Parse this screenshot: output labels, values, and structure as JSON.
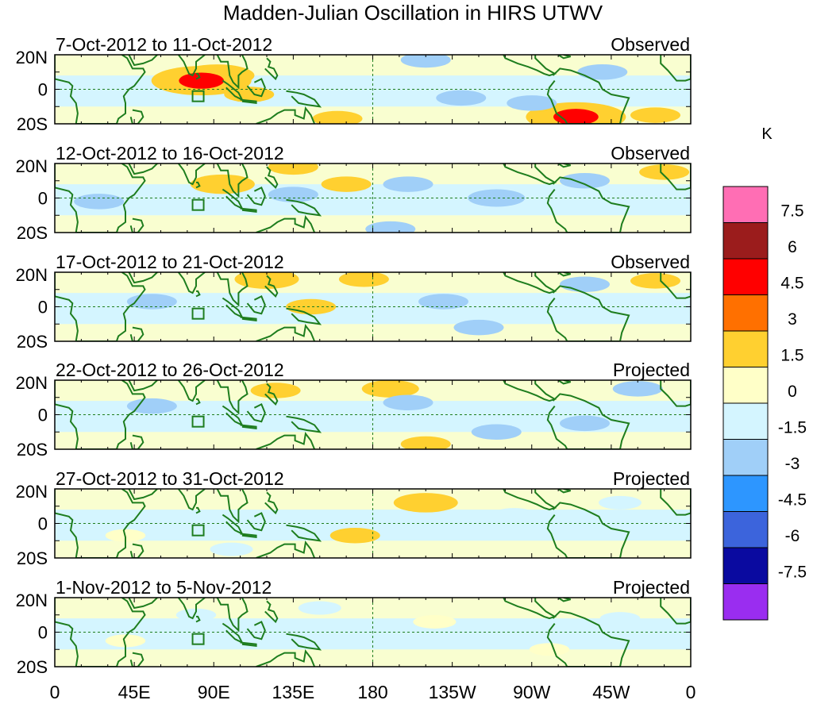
{
  "chart_data": {
    "type": "heatmap",
    "title": "Madden-Julian Oscillation in HIRS UTWV",
    "colorbar": {
      "unit_label": "K",
      "colors": [
        "#ff6eb4",
        "#9b1c1c",
        "#ff0000",
        "#ff7000",
        "#ffd030",
        "#ffffc8",
        "#d4f5ff",
        "#a0cff8",
        "#2d96ff",
        "#3c64dc",
        "#0a0aa0",
        "#9a2df0"
      ],
      "tick_labels": [
        "7.5",
        "6",
        "4.5",
        "3",
        "1.5",
        "0",
        "-1.5",
        "-3",
        "-4.5",
        "-6",
        "-7.5"
      ],
      "levels": [
        7.5,
        6,
        4.5,
        3,
        1.5,
        0,
        -1.5,
        -3,
        -4.5,
        -6,
        -7.5
      ]
    },
    "xaxis": {
      "tick_labels": [
        "0",
        "45E",
        "90E",
        "135E",
        "180",
        "135W",
        "90W",
        "45W",
        "0"
      ],
      "lon_range": [
        0,
        360
      ]
    },
    "yaxis": {
      "tick_labels": [
        "20N",
        "0",
        "20S"
      ],
      "lat_range": [
        -20,
        20
      ]
    },
    "panels": [
      {
        "dates": "7-Oct-2012 to 11-Oct-2012",
        "kind": "Observed",
        "anomalies": [
          {
            "lon": 92,
            "lat": 8,
            "value": 3.2
          },
          {
            "lon": 75,
            "lat": 4,
            "value": 1.5
          },
          {
            "lon": 83,
            "lat": 5,
            "value": 5.0
          },
          {
            "lon": 110,
            "lat": -3,
            "value": 1.5
          },
          {
            "lon": 160,
            "lat": -17,
            "value": 1.5
          },
          {
            "lon": 290,
            "lat": -15,
            "value": 2.5
          },
          {
            "lon": 295,
            "lat": -16,
            "value": 5.0
          },
          {
            "lon": 340,
            "lat": -15,
            "value": 1.5
          },
          {
            "lon": 210,
            "lat": 17,
            "value": -1.5
          },
          {
            "lon": 230,
            "lat": -5,
            "value": -1.5
          },
          {
            "lon": 270,
            "lat": -8,
            "value": -1.5
          },
          {
            "lon": 310,
            "lat": 10,
            "value": -1.5
          },
          {
            "lon": 35,
            "lat": 4,
            "value": -1.0
          }
        ]
      },
      {
        "dates": "12-Oct-2012 to 16-Oct-2012",
        "kind": "Observed",
        "anomalies": [
          {
            "lon": 95,
            "lat": 8,
            "value": 2.5
          },
          {
            "lon": 135,
            "lat": 18,
            "value": 1.5
          },
          {
            "lon": 165,
            "lat": 8,
            "value": 1.5
          },
          {
            "lon": 345,
            "lat": 15,
            "value": 1.5
          },
          {
            "lon": 25,
            "lat": -2,
            "value": -1.5
          },
          {
            "lon": 135,
            "lat": 2,
            "value": -1.5
          },
          {
            "lon": 200,
            "lat": 8,
            "value": -1.5
          },
          {
            "lon": 250,
            "lat": 0,
            "value": -2.0
          },
          {
            "lon": 300,
            "lat": 10,
            "value": -1.5
          },
          {
            "lon": 190,
            "lat": -18,
            "value": -1.5
          }
        ]
      },
      {
        "dates": "17-Oct-2012 to 21-Oct-2012",
        "kind": "Observed",
        "anomalies": [
          {
            "lon": 120,
            "lat": 16,
            "value": 2.5
          },
          {
            "lon": 175,
            "lat": 16,
            "value": 1.5
          },
          {
            "lon": 145,
            "lat": 0,
            "value": 1.5
          },
          {
            "lon": 340,
            "lat": 15,
            "value": 1.5
          },
          {
            "lon": 55,
            "lat": 3,
            "value": -1.5
          },
          {
            "lon": 220,
            "lat": 3,
            "value": -1.5
          },
          {
            "lon": 240,
            "lat": -12,
            "value": -1.5
          },
          {
            "lon": 300,
            "lat": 13,
            "value": -1.5
          },
          {
            "lon": 30,
            "lat": 0,
            "value": -1.0
          }
        ]
      },
      {
        "dates": "22-Oct-2012 to 26-Oct-2012",
        "kind": "Projected",
        "anomalies": [
          {
            "lon": 190,
            "lat": 15,
            "value": 2.0
          },
          {
            "lon": 125,
            "lat": 14,
            "value": 1.5
          },
          {
            "lon": 210,
            "lat": -17,
            "value": 1.5
          },
          {
            "lon": 55,
            "lat": 5,
            "value": -1.5
          },
          {
            "lon": 200,
            "lat": 7,
            "value": -1.5
          },
          {
            "lon": 300,
            "lat": -5,
            "value": -1.5
          },
          {
            "lon": 250,
            "lat": -10,
            "value": -1.5
          },
          {
            "lon": 330,
            "lat": 15,
            "value": -1.5
          }
        ]
      },
      {
        "dates": "27-Oct-2012 to 31-Oct-2012",
        "kind": "Projected",
        "anomalies": [
          {
            "lon": 210,
            "lat": 12,
            "value": 2.5
          },
          {
            "lon": 170,
            "lat": -7,
            "value": 1.5
          },
          {
            "lon": 40,
            "lat": -7,
            "value": 0.8
          },
          {
            "lon": 55,
            "lat": 0,
            "value": -1.2
          },
          {
            "lon": 100,
            "lat": -15,
            "value": -1.0
          },
          {
            "lon": 260,
            "lat": 5,
            "value": -1.0
          },
          {
            "lon": 320,
            "lat": 12,
            "value": -1.0
          }
        ]
      },
      {
        "dates": "1-Nov-2012 to 5-Nov-2012",
        "kind": "Projected",
        "anomalies": [
          {
            "lon": 215,
            "lat": 6,
            "value": 1.0
          },
          {
            "lon": 280,
            "lat": -10,
            "value": 0.8
          },
          {
            "lon": 40,
            "lat": -5,
            "value": 0.8
          },
          {
            "lon": 150,
            "lat": 14,
            "value": -1.0
          },
          {
            "lon": 80,
            "lat": 10,
            "value": -0.8
          },
          {
            "lon": 320,
            "lat": 8,
            "value": -0.8
          }
        ]
      }
    ]
  }
}
